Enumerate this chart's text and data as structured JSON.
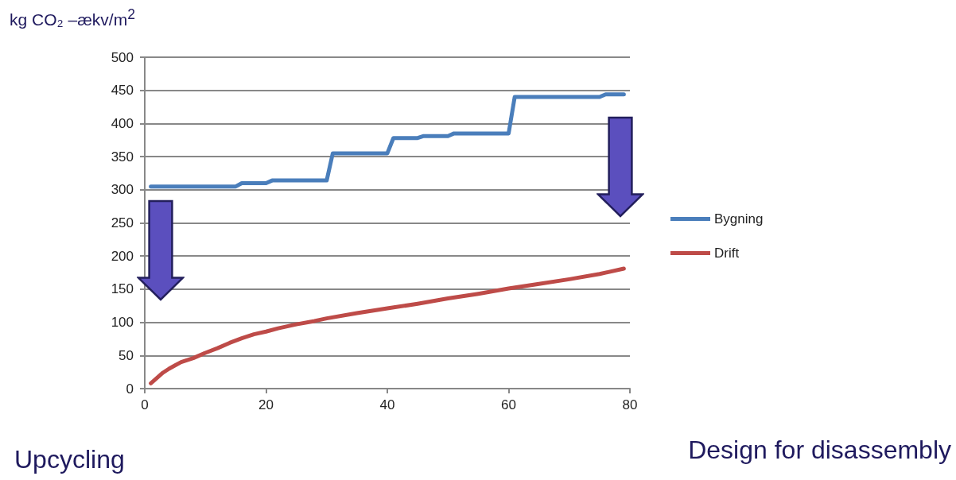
{
  "chart_data": {
    "type": "line",
    "ylabel": "kg CO₂ –ækv/m$^{2}$",
    "annotations": [
      "Upcycling",
      "Design for disassembly"
    ],
    "xlim": [
      0,
      80
    ],
    "xticks": [
      0,
      20,
      40,
      60,
      80
    ],
    "ylim": [
      0,
      500
    ],
    "yticks": [
      0,
      50,
      100,
      150,
      200,
      250,
      300,
      350,
      400,
      450,
      500
    ],
    "grid": "y",
    "legend": "right",
    "marker": "none",
    "line_style": "solid",
    "series": [
      {
        "name": "Bygning",
        "color": "#4a7ebb",
        "x": [
          1,
          15,
          16,
          20,
          21,
          30,
          31,
          40,
          41,
          45,
          46,
          50,
          51,
          60,
          61,
          75,
          76,
          79
        ],
        "values": [
          305,
          305,
          310,
          310,
          314,
          314,
          355,
          355,
          378,
          378,
          381,
          381,
          385,
          385,
          440,
          440,
          444,
          444
        ]
      },
      {
        "name": "Drift",
        "color": "#be4b48",
        "x": [
          1,
          2,
          3,
          4,
          5,
          6,
          8,
          10,
          12,
          14,
          16,
          18,
          20,
          22,
          25,
          28,
          30,
          35,
          40,
          45,
          50,
          55,
          60,
          65,
          70,
          75,
          79
        ],
        "values": [
          8,
          16,
          24,
          30,
          35,
          40,
          46,
          54,
          61,
          69,
          76,
          82,
          86,
          91,
          97,
          102,
          106,
          114,
          121,
          128,
          136,
          143,
          151,
          158,
          165,
          173,
          181
        ]
      }
    ]
  }
}
